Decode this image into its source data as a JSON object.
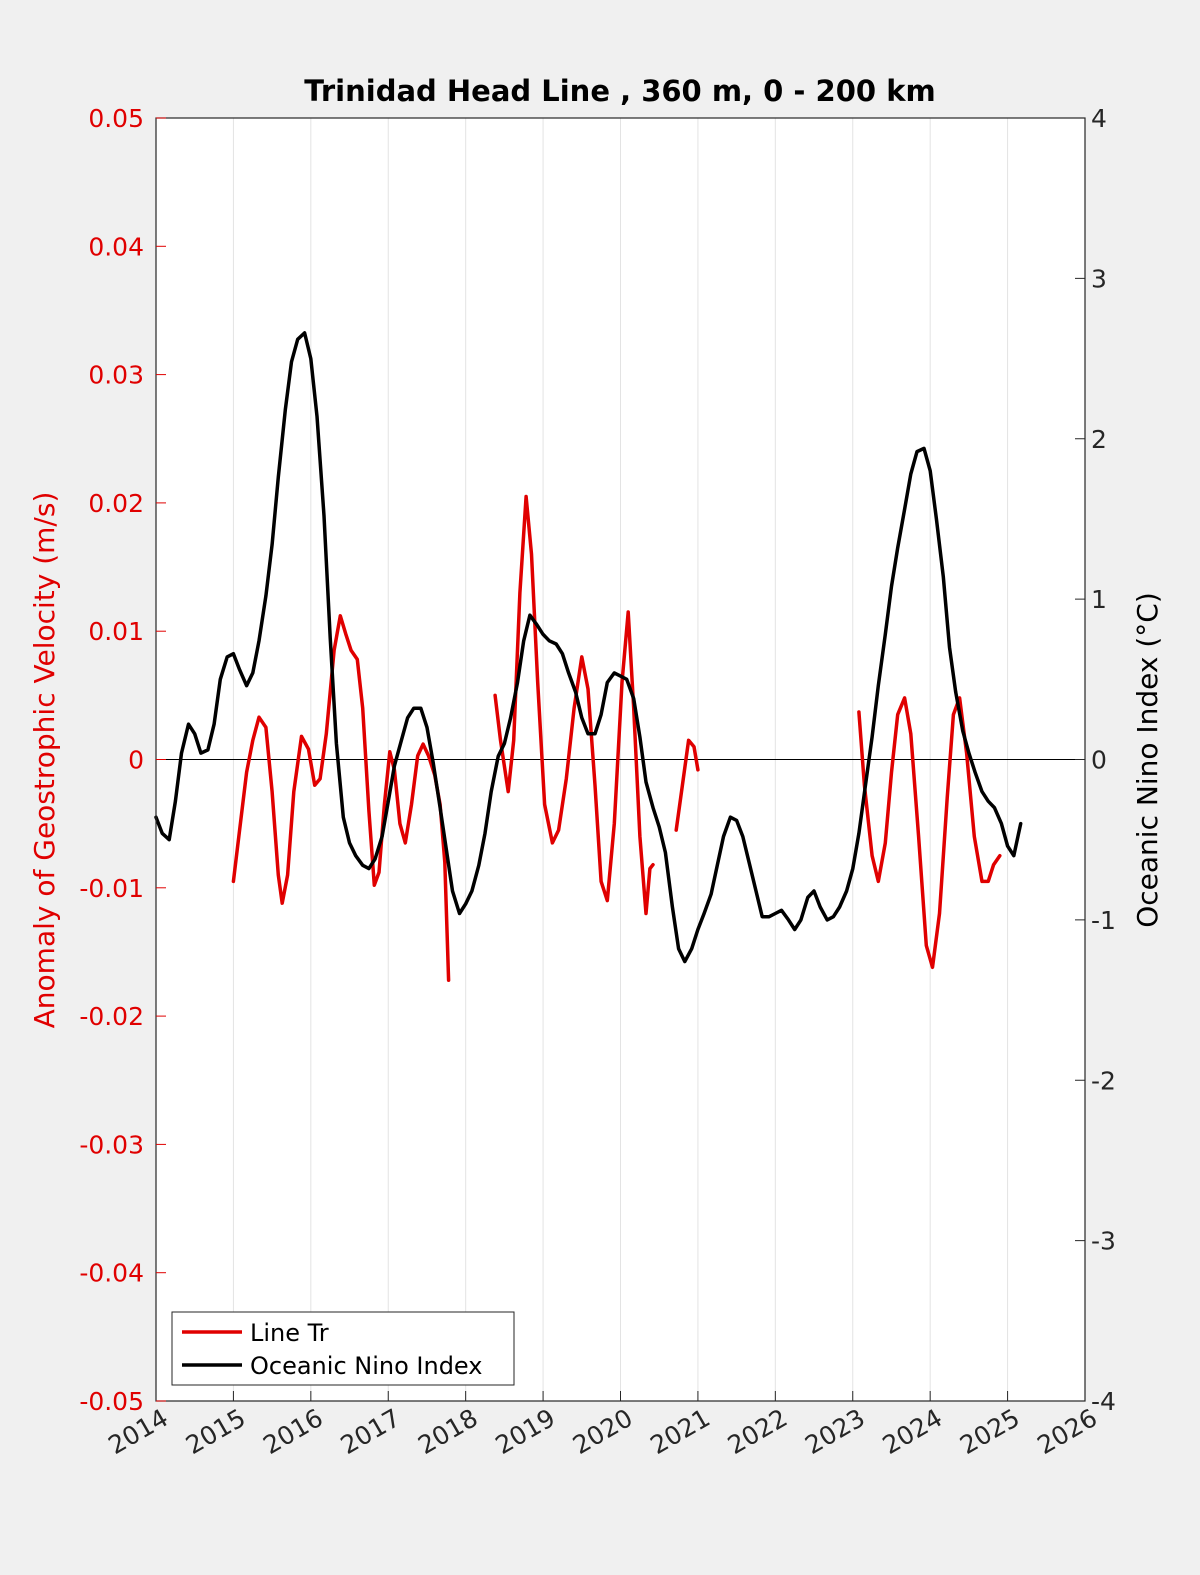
{
  "chart_data": {
    "type": "line",
    "title": "Trinidad Head Line , 360 m, 0 - 200 km",
    "xlabel": "",
    "ylabel_left": "Anomaly of Geostrophic Velocity (m/s)",
    "ylabel_right": "Oceanic Nino Index (°C)",
    "xlim": [
      2014,
      2026
    ],
    "ylim_left": [
      -0.05,
      0.05
    ],
    "ylim_right": [
      -4,
      4
    ],
    "x_ticks": [
      "2014",
      "2015",
      "2016",
      "2017",
      "2018",
      "2019",
      "2020",
      "2021",
      "2022",
      "2023",
      "2024",
      "2025",
      "2026"
    ],
    "y_ticks_left": [
      "0.05",
      "0.04",
      "0.03",
      "0.02",
      "0.01",
      "0",
      "-0.01",
      "-0.02",
      "-0.03",
      "-0.04",
      "-0.05"
    ],
    "y_ticks_right": [
      "4",
      "3",
      "2",
      "1",
      "0",
      "-1",
      "-2",
      "-3",
      "-4"
    ],
    "grid": "vertical",
    "legend_position": "bottom-left",
    "colors": {
      "line_tr": "#e00000",
      "oni": "#000000",
      "left_axis": "#e00000",
      "right_axis": "#000000"
    },
    "series": [
      {
        "name": "Line Tr",
        "axis": "left",
        "segments": [
          [
            [
              2015.0,
              -0.0095
            ],
            [
              2015.08,
              -0.0055
            ],
            [
              2015.17,
              -0.001
            ],
            [
              2015.25,
              0.0015
            ],
            [
              2015.33,
              0.0033
            ],
            [
              2015.42,
              0.0025
            ],
            [
              2015.5,
              -0.0025
            ],
            [
              2015.58,
              -0.009
            ],
            [
              2015.63,
              -0.0112
            ],
            [
              2015.7,
              -0.009
            ],
            [
              2015.78,
              -0.0025
            ],
            [
              2015.88,
              0.0018
            ],
            [
              2015.97,
              0.0008
            ],
            [
              2016.05,
              -0.002
            ],
            [
              2016.12,
              -0.0015
            ],
            [
              2016.2,
              0.002
            ],
            [
              2016.3,
              0.0085
            ],
            [
              2016.38,
              0.0112
            ],
            [
              2016.45,
              0.0098
            ],
            [
              2016.52,
              0.0085
            ],
            [
              2016.6,
              0.0078
            ],
            [
              2016.67,
              0.004
            ],
            [
              2016.75,
              -0.004
            ],
            [
              2016.82,
              -0.0098
            ],
            [
              2016.88,
              -0.0088
            ],
            [
              2016.95,
              -0.0035
            ],
            [
              2017.02,
              0.0006
            ],
            [
              2017.08,
              -0.0008
            ],
            [
              2017.15,
              -0.005
            ],
            [
              2017.22,
              -0.0065
            ],
            [
              2017.3,
              -0.0035
            ],
            [
              2017.38,
              0.0003
            ],
            [
              2017.45,
              0.0012
            ],
            [
              2017.52,
              0.0003
            ],
            [
              2017.6,
              -0.0012
            ],
            [
              2017.67,
              -0.0035
            ],
            [
              2017.73,
              -0.008
            ],
            [
              2017.78,
              -0.0172
            ]
          ],
          [
            [
              2018.38,
              0.005
            ],
            [
              2018.45,
              0.0015
            ],
            [
              2018.55,
              -0.0025
            ],
            [
              2018.62,
              0.0015
            ],
            [
              2018.7,
              0.013
            ],
            [
              2018.78,
              0.0205
            ],
            [
              2018.85,
              0.016
            ],
            [
              2018.93,
              0.006
            ],
            [
              2019.02,
              -0.0035
            ],
            [
              2019.12,
              -0.0065
            ],
            [
              2019.2,
              -0.0055
            ],
            [
              2019.3,
              -0.0015
            ],
            [
              2019.4,
              0.004
            ],
            [
              2019.5,
              0.008
            ],
            [
              2019.58,
              0.0055
            ],
            [
              2019.67,
              -0.002
            ],
            [
              2019.75,
              -0.0095
            ],
            [
              2019.83,
              -0.011
            ],
            [
              2019.92,
              -0.005
            ],
            [
              2020.02,
              0.006
            ],
            [
              2020.1,
              0.0115
            ],
            [
              2020.17,
              0.004
            ],
            [
              2020.25,
              -0.006
            ],
            [
              2020.33,
              -0.012
            ],
            [
              2020.38,
              -0.0085
            ],
            [
              2020.42,
              -0.0082
            ]
          ],
          [
            [
              2020.72,
              -0.0055
            ],
            [
              2020.8,
              -0.002
            ],
            [
              2020.88,
              0.0015
            ],
            [
              2020.95,
              0.001
            ],
            [
              2021.0,
              -0.0008
            ]
          ],
          [
            [
              2023.08,
              0.0037
            ],
            [
              2023.15,
              -0.002
            ],
            [
              2023.25,
              -0.0075
            ],
            [
              2023.33,
              -0.0095
            ],
            [
              2023.42,
              -0.0065
            ],
            [
              2023.5,
              -0.001
            ],
            [
              2023.58,
              0.0035
            ],
            [
              2023.67,
              0.0048
            ],
            [
              2023.75,
              0.002
            ],
            [
              2023.85,
              -0.006
            ],
            [
              2023.95,
              -0.0145
            ],
            [
              2024.03,
              -0.0162
            ],
            [
              2024.12,
              -0.012
            ],
            [
              2024.22,
              -0.003
            ],
            [
              2024.3,
              0.0035
            ],
            [
              2024.38,
              0.0048
            ],
            [
              2024.47,
              0.0005
            ],
            [
              2024.57,
              -0.006
            ],
            [
              2024.67,
              -0.0095
            ],
            [
              2024.75,
              -0.0095
            ],
            [
              2024.82,
              -0.0082
            ],
            [
              2024.9,
              -0.0075
            ]
          ]
        ]
      },
      {
        "name": "Oceanic Nino Index",
        "axis": "right",
        "segments": [
          [
            [
              2014.0,
              -0.36
            ],
            [
              2014.08,
              -0.46
            ],
            [
              2014.17,
              -0.5
            ],
            [
              2014.25,
              -0.26
            ],
            [
              2014.33,
              0.04
            ],
            [
              2014.42,
              0.22
            ],
            [
              2014.5,
              0.16
            ],
            [
              2014.58,
              0.04
            ],
            [
              2014.67,
              0.06
            ],
            [
              2014.75,
              0.22
            ],
            [
              2014.83,
              0.5
            ],
            [
              2014.92,
              0.64
            ],
            [
              2015.0,
              0.66
            ],
            [
              2015.08,
              0.56
            ],
            [
              2015.17,
              0.46
            ],
            [
              2015.25,
              0.54
            ],
            [
              2015.33,
              0.74
            ],
            [
              2015.42,
              1.02
            ],
            [
              2015.5,
              1.34
            ],
            [
              2015.58,
              1.76
            ],
            [
              2015.67,
              2.18
            ],
            [
              2015.75,
              2.48
            ],
            [
              2015.83,
              2.62
            ],
            [
              2015.92,
              2.66
            ],
            [
              2016.0,
              2.5
            ],
            [
              2016.08,
              2.14
            ],
            [
              2016.17,
              1.52
            ],
            [
              2016.25,
              0.76
            ],
            [
              2016.33,
              0.1
            ],
            [
              2016.42,
              -0.36
            ],
            [
              2016.5,
              -0.52
            ],
            [
              2016.58,
              -0.6
            ],
            [
              2016.67,
              -0.66
            ],
            [
              2016.75,
              -0.68
            ],
            [
              2016.83,
              -0.62
            ],
            [
              2016.92,
              -0.48
            ],
            [
              2017.0,
              -0.26
            ],
            [
              2017.08,
              -0.04
            ],
            [
              2017.17,
              0.12
            ],
            [
              2017.25,
              0.26
            ],
            [
              2017.33,
              0.32
            ],
            [
              2017.42,
              0.32
            ],
            [
              2017.5,
              0.2
            ],
            [
              2017.58,
              -0.02
            ],
            [
              2017.67,
              -0.3
            ],
            [
              2017.75,
              -0.56
            ],
            [
              2017.83,
              -0.82
            ],
            [
              2017.92,
              -0.96
            ],
            [
              2018.0,
              -0.9
            ],
            [
              2018.08,
              -0.82
            ],
            [
              2018.17,
              -0.66
            ],
            [
              2018.25,
              -0.46
            ],
            [
              2018.33,
              -0.2
            ],
            [
              2018.42,
              0.02
            ],
            [
              2018.5,
              0.1
            ],
            [
              2018.58,
              0.26
            ],
            [
              2018.67,
              0.48
            ],
            [
              2018.75,
              0.74
            ],
            [
              2018.83,
              0.9
            ],
            [
              2018.92,
              0.84
            ],
            [
              2019.0,
              0.78
            ],
            [
              2019.08,
              0.74
            ],
            [
              2019.17,
              0.72
            ],
            [
              2019.25,
              0.66
            ],
            [
              2019.33,
              0.54
            ],
            [
              2019.42,
              0.42
            ],
            [
              2019.5,
              0.26
            ],
            [
              2019.58,
              0.16
            ],
            [
              2019.67,
              0.16
            ],
            [
              2019.75,
              0.28
            ],
            [
              2019.83,
              0.48
            ],
            [
              2019.92,
              0.54
            ],
            [
              2020.0,
              0.52
            ],
            [
              2020.08,
              0.5
            ],
            [
              2020.17,
              0.38
            ],
            [
              2020.25,
              0.14
            ],
            [
              2020.33,
              -0.14
            ],
            [
              2020.42,
              -0.3
            ],
            [
              2020.5,
              -0.42
            ],
            [
              2020.58,
              -0.58
            ],
            [
              2020.67,
              -0.92
            ],
            [
              2020.75,
              -1.18
            ],
            [
              2020.83,
              -1.26
            ],
            [
              2020.92,
              -1.18
            ],
            [
              2021.0,
              -1.06
            ],
            [
              2021.08,
              -0.96
            ],
            [
              2021.17,
              -0.84
            ],
            [
              2021.25,
              -0.66
            ],
            [
              2021.33,
              -0.48
            ],
            [
              2021.42,
              -0.36
            ],
            [
              2021.5,
              -0.38
            ],
            [
              2021.58,
              -0.48
            ],
            [
              2021.67,
              -0.66
            ],
            [
              2021.75,
              -0.82
            ],
            [
              2021.83,
              -0.98
            ],
            [
              2021.92,
              -0.98
            ],
            [
              2022.0,
              -0.96
            ],
            [
              2022.08,
              -0.94
            ],
            [
              2022.17,
              -1.0
            ],
            [
              2022.25,
              -1.06
            ],
            [
              2022.33,
              -1.0
            ],
            [
              2022.42,
              -0.86
            ],
            [
              2022.5,
              -0.82
            ],
            [
              2022.58,
              -0.92
            ],
            [
              2022.67,
              -1.0
            ],
            [
              2022.75,
              -0.98
            ],
            [
              2022.83,
              -0.92
            ],
            [
              2022.92,
              -0.82
            ],
            [
              2023.0,
              -0.68
            ],
            [
              2023.08,
              -0.46
            ],
            [
              2023.17,
              -0.14
            ],
            [
              2023.25,
              0.14
            ],
            [
              2023.33,
              0.46
            ],
            [
              2023.42,
              0.78
            ],
            [
              2023.5,
              1.08
            ],
            [
              2023.58,
              1.32
            ],
            [
              2023.67,
              1.56
            ],
            [
              2023.75,
              1.78
            ],
            [
              2023.83,
              1.92
            ],
            [
              2023.92,
              1.94
            ],
            [
              2024.0,
              1.8
            ],
            [
              2024.08,
              1.5
            ],
            [
              2024.17,
              1.14
            ],
            [
              2024.25,
              0.7
            ],
            [
              2024.33,
              0.42
            ],
            [
              2024.42,
              0.18
            ],
            [
              2024.5,
              0.04
            ],
            [
              2024.58,
              -0.08
            ],
            [
              2024.67,
              -0.2
            ],
            [
              2024.75,
              -0.26
            ],
            [
              2024.83,
              -0.3
            ],
            [
              2024.92,
              -0.4
            ],
            [
              2025.0,
              -0.54
            ],
            [
              2025.08,
              -0.6
            ],
            [
              2025.17,
              -0.4
            ]
          ]
        ]
      }
    ]
  }
}
